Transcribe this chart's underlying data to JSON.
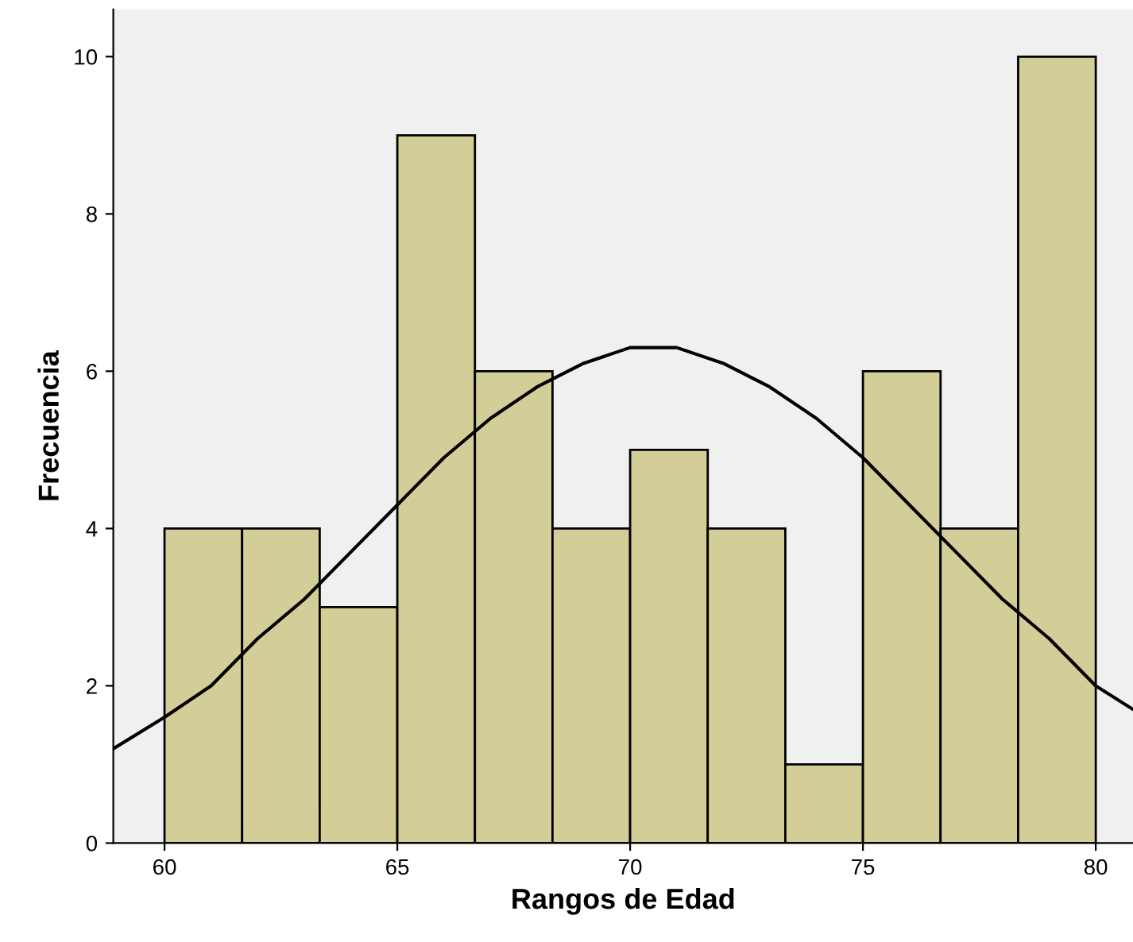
{
  "chart_data": {
    "type": "histogram",
    "xlabel": "Rangos de Edad",
    "ylabel": "Frecuencia",
    "bins": [
      60,
      61.667,
      63.333,
      65,
      66.667,
      68.333,
      70,
      71.667,
      73.333,
      75,
      76.667,
      78.333,
      80
    ],
    "values": [
      4,
      4,
      3,
      9,
      6,
      4,
      5,
      4,
      1,
      6,
      4,
      10
    ],
    "color": "#d3ce97",
    "series": [
      {
        "type": "line",
        "color": "#000000",
        "x": [
          58.9,
          60,
          61,
          62,
          63,
          64,
          65,
          66,
          67,
          68,
          69,
          70,
          70.5,
          71,
          72,
          73,
          74,
          75,
          76,
          77,
          78,
          79,
          80,
          80.8
        ],
        "values": [
          1.2,
          1.6,
          2.0,
          2.6,
          3.1,
          3.7,
          4.3,
          4.9,
          5.4,
          5.8,
          6.1,
          6.3,
          6.3,
          6.3,
          6.1,
          5.8,
          5.4,
          4.9,
          4.3,
          3.7,
          3.1,
          2.6,
          2.0,
          1.7
        ]
      }
    ],
    "xlim": [
      58.9,
      80.8
    ],
    "ylim": [
      0,
      10.6
    ],
    "xticks": [
      60,
      65,
      70,
      75,
      80
    ],
    "yticks": [
      0,
      2,
      4,
      6,
      8,
      10
    ],
    "grid": false,
    "legend": false
  }
}
